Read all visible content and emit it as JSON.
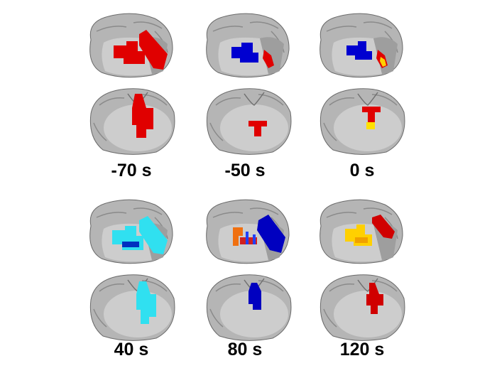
{
  "panels": [
    {
      "label": "-70 s"
    },
    {
      "label": "-50 s"
    },
    {
      "label": "0 s"
    },
    {
      "label": "40 s"
    },
    {
      "label": "80 s"
    },
    {
      "label": "120 s"
    }
  ]
}
